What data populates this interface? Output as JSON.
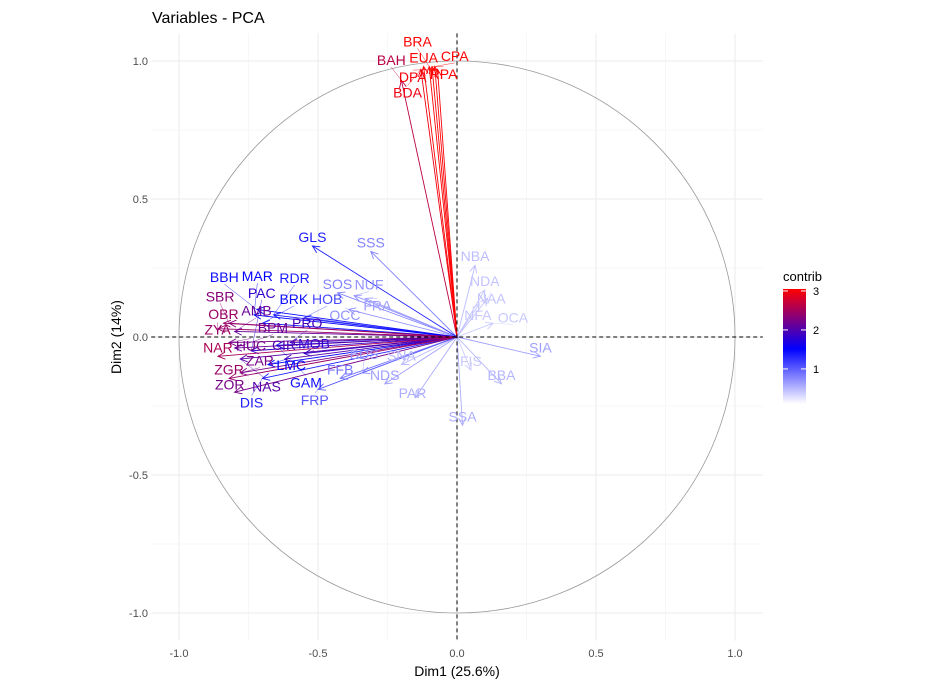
{
  "chart_data": {
    "type": "scatter",
    "title": "Variables - PCA",
    "xlabel": "Dim1 (25.6%)",
    "ylabel": "Dim2 (14%)",
    "xlim": [
      -1.1,
      1.1
    ],
    "ylim": [
      -1.1,
      1.1
    ],
    "x_ticks": [
      -1.0,
      -0.5,
      0.0,
      0.5,
      1.0
    ],
    "y_ticks": [
      -1.0,
      -0.5,
      0.0,
      0.5,
      1.0
    ],
    "x_tick_labels": [
      "-1.0",
      "-0.5",
      "0.0",
      "0.5",
      "1.0"
    ],
    "y_tick_labels": [
      "-1.0",
      "-0.5",
      "0.0",
      "0.5",
      "1.0"
    ],
    "grid": true,
    "legend": {
      "title": "contrib",
      "position": "right",
      "ticks": [
        1,
        2,
        3
      ],
      "tick_labels": [
        "1",
        "2",
        "3"
      ],
      "range": [
        0.1,
        3.05
      ]
    },
    "colors": {
      "low": "#FFFFFF",
      "mid": "#0000FF",
      "high": "#FF0000",
      "midpoint": 1.5
    },
    "variables": [
      {
        "name": "BAH",
        "x": -0.2,
        "y": 0.93,
        "contrib": 2.6
      },
      {
        "name": "BDA",
        "x": -0.13,
        "y": 0.97,
        "contrib": 2.9
      },
      {
        "name": "EUA",
        "x": -0.12,
        "y": 0.98,
        "contrib": 3.0
      },
      {
        "name": "BRA",
        "x": -0.1,
        "y": 0.98,
        "contrib": 3.0
      },
      {
        "name": "RPA",
        "x": -0.09,
        "y": 0.98,
        "contrib": 3.0
      },
      {
        "name": "CPA",
        "x": -0.08,
        "y": 0.98,
        "contrib": 3.0
      },
      {
        "name": "DPA",
        "x": -0.07,
        "y": 0.97,
        "contrib": 2.95
      },
      {
        "name": "GLS",
        "x": -0.52,
        "y": 0.33,
        "contrib": 1.3
      },
      {
        "name": "SSS",
        "x": -0.31,
        "y": 0.31,
        "contrib": 0.6
      },
      {
        "name": "SOS",
        "x": -0.43,
        "y": 0.16,
        "contrib": 0.6
      },
      {
        "name": "NUF",
        "x": -0.37,
        "y": 0.15,
        "contrib": 0.5
      },
      {
        "name": "FRA",
        "x": -0.33,
        "y": 0.14,
        "contrib": 0.4
      },
      {
        "name": "OCC",
        "x": -0.39,
        "y": 0.1,
        "contrib": 0.5
      },
      {
        "name": "NBA",
        "x": 0.065,
        "y": 0.26,
        "contrib": 0.2
      },
      {
        "name": "NDA",
        "x": 0.1,
        "y": 0.17,
        "contrib": 0.15
      },
      {
        "name": "NAA",
        "x": 0.11,
        "y": 0.14,
        "contrib": 0.15
      },
      {
        "name": "NFA",
        "x": 0.08,
        "y": 0.12,
        "contrib": 0.12
      },
      {
        "name": "OCA",
        "x": 0.13,
        "y": 0.05,
        "contrib": 0.1
      },
      {
        "name": "SIA",
        "x": 0.3,
        "y": -0.07,
        "contrib": 0.4
      },
      {
        "name": "BBA",
        "x": 0.16,
        "y": -0.17,
        "contrib": 0.25
      },
      {
        "name": "SSA",
        "x": 0.02,
        "y": -0.32,
        "contrib": 0.3
      },
      {
        "name": "FIS",
        "x": 0.05,
        "y": -0.12,
        "contrib": 0.1
      },
      {
        "name": "PAR",
        "x": -0.15,
        "y": -0.22,
        "contrib": 0.3
      },
      {
        "name": "NDS",
        "x": -0.26,
        "y": -0.17,
        "contrib": 0.4
      },
      {
        "name": "SNA",
        "x": -0.2,
        "y": -0.1,
        "contrib": 0.25
      },
      {
        "name": "FRP",
        "x": -0.5,
        "y": -0.19,
        "contrib": 0.9
      },
      {
        "name": "FFB",
        "x": -0.42,
        "y": -0.15,
        "contrib": 0.7
      },
      {
        "name": "BDS",
        "x": -0.34,
        "y": -0.13,
        "contrib": 0.5
      },
      {
        "name": "BBH",
        "x": -0.72,
        "y": 0.1,
        "contrib": 1.4
      },
      {
        "name": "MAR",
        "x": -0.73,
        "y": 0.08,
        "contrib": 1.5
      },
      {
        "name": "RDR",
        "x": -0.66,
        "y": 0.08,
        "contrib": 1.3
      },
      {
        "name": "HOB",
        "x": -0.55,
        "y": 0.07,
        "contrib": 1.0
      },
      {
        "name": "BRK",
        "x": -0.7,
        "y": 0.05,
        "contrib": 1.4
      },
      {
        "name": "SBR",
        "x": -0.82,
        "y": 0.05,
        "contrib": 2.3
      },
      {
        "name": "OBR",
        "x": -0.84,
        "y": 0.05,
        "contrib": 2.4
      },
      {
        "name": "ZYA",
        "x": -0.86,
        "y": 0.03,
        "contrib": 2.4
      },
      {
        "name": "AMB",
        "x": -0.8,
        "y": 0.02,
        "contrib": 2.1
      },
      {
        "name": "HUC",
        "x": -0.82,
        "y": -0.02,
        "contrib": 2.2
      },
      {
        "name": "BPM",
        "x": -0.8,
        "y": -0.04,
        "contrib": 2.1
      },
      {
        "name": "PAC",
        "x": -0.74,
        "y": -0.05,
        "contrib": 1.8
      },
      {
        "name": "NAR",
        "x": -0.86,
        "y": -0.07,
        "contrib": 2.5
      },
      {
        "name": "NAS",
        "x": -0.78,
        "y": -0.08,
        "contrib": 2.0
      },
      {
        "name": "ZGR",
        "x": -0.82,
        "y": -0.15,
        "contrib": 2.4
      },
      {
        "name": "ZAR",
        "x": -0.78,
        "y": -0.13,
        "contrib": 2.2
      },
      {
        "name": "LMC",
        "x": -0.68,
        "y": -0.1,
        "contrib": 1.5
      },
      {
        "name": "GAM",
        "x": -0.65,
        "y": -0.03,
        "contrib": 1.4
      },
      {
        "name": "PRO",
        "x": -0.6,
        "y": -0.02,
        "contrib": 1.9
      },
      {
        "name": "DIS",
        "x": -0.7,
        "y": -0.15,
        "contrib": 1.3
      },
      {
        "name": "ZOR",
        "x": -0.8,
        "y": -0.2,
        "contrib": 2.2
      },
      {
        "name": "MOB",
        "x": -0.55,
        "y": -0.06,
        "contrib": 1.8
      },
      {
        "name": "CIR",
        "x": -0.62,
        "y": -0.08,
        "contrib": 2.0
      }
    ]
  }
}
